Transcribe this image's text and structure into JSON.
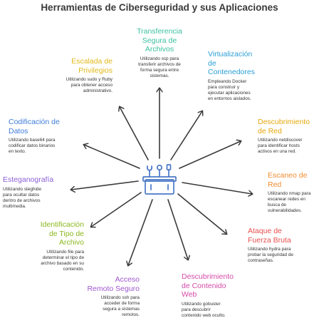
{
  "title": "Herramientas de Ciberseguridad y sus Aplicaciones",
  "center_icon": "toolbox-icon",
  "colors": {
    "title": "#3a3a3a",
    "arrows": "#3a3a3a",
    "hub_icon": "#4a78c8",
    "text": "#333333"
  },
  "items": [
    {
      "key": "transfer",
      "heading": "Transferencia\nSegura de\nArchivos",
      "desc": "Utilizando scp para\ntransferir archivos de\nforma segura entre\nsistemas.",
      "color": "#3cc0a0"
    },
    {
      "key": "docker",
      "heading": "Virtualización\nde\nContenedores",
      "desc": "Empleando Docker\npara construir y\nejecutar aplicaciones\nen entornos aislados.",
      "color": "#2b9fd6"
    },
    {
      "key": "network",
      "heading": "Descubrimiento\nde Red",
      "desc": "Utilizando netdiscover\npara identificar hosts\nactivos en una red.",
      "color": "#e6a80c"
    },
    {
      "key": "scan",
      "heading": "Escaneo de\nRed",
      "desc": "Utilizando nmap para\nescanear redes en\nbusca de\nvulnerabilidades.",
      "color": "#f28b2c"
    },
    {
      "key": "brute",
      "heading": "Ataque de\nFuerza Bruta",
      "desc": "Utilizando hydra para\nprobar la seguridad de\ncontraseñas.",
      "color": "#e84e4e"
    },
    {
      "key": "webdisc",
      "heading": "Descubrimiento\nde Contenido\nWeb",
      "desc": "Utilizando gobuster\npara descubrir\ncontenido web oculto.",
      "color": "#d64aa8"
    },
    {
      "key": "ssh",
      "heading": "Acceso\nRemoto Seguro",
      "desc": "Utilizando ssh para\nacceder de forma\nsegura a sistemas\nremotos.",
      "color": "#a057d0"
    },
    {
      "key": "filetype",
      "heading": "Identificación\nde Tipo de\nArchivo",
      "desc": "Utilizando file para\ndeterminar el tipo de\narchivo basado en su\ncontenido.",
      "color": "#8bb81e"
    },
    {
      "key": "stego",
      "heading": "Esteganografía",
      "desc": "Utilizando steghide\npara ocultar datos\ndentro de archivos\nmultimedia.",
      "color": "#8b5fd6"
    },
    {
      "key": "encoding",
      "heading": "Codificación de\nDatos",
      "desc": "Utilizando base64 para\ncodificar datos binarios\nen texto.",
      "color": "#3d7bd9"
    },
    {
      "key": "privesc",
      "heading": "Escalada de\nPrivilegios",
      "desc": "Utilizando sudo y Ruby\npara obtener acceso\nadministrativo.",
      "color": "#e2b81a"
    }
  ]
}
